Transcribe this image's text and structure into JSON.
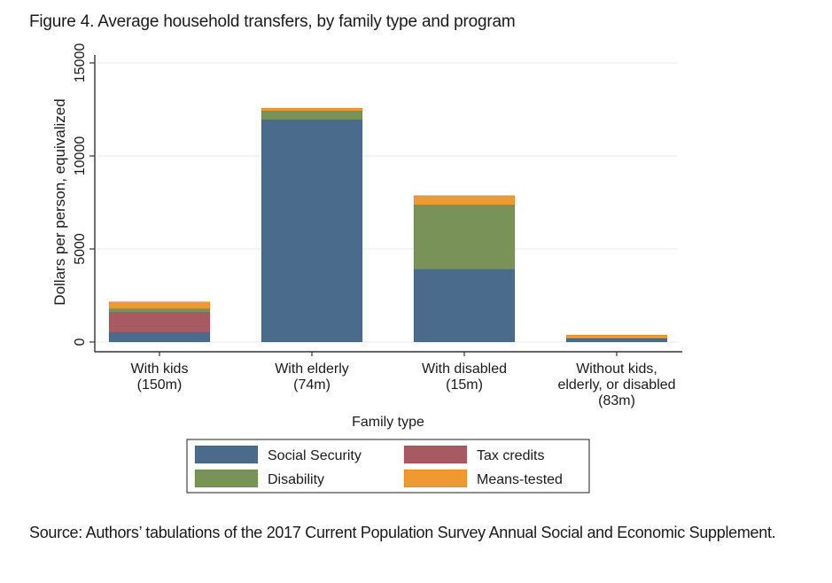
{
  "figure_title": "Figure 4. Average household transfers, by family type and program",
  "source_note": "Source: Authors’ tabulations of the 2017 Current Population Survey Annual Social and Economic Supplement.",
  "chart_data": {
    "type": "bar",
    "stacked": true,
    "title": "Figure 4. Average household transfers, by family type and program",
    "xlabel": "Family type",
    "ylabel": "Dollars per person, equivalized",
    "ylim": [
      0,
      15000
    ],
    "yticks": [
      0,
      5000,
      10000,
      15000
    ],
    "grid": true,
    "legend_position": "bottom",
    "categories": [
      [
        "With kids",
        "(150m)"
      ],
      [
        "With elderly",
        "(74m)"
      ],
      [
        "With disabled",
        "(15m)"
      ],
      [
        "Without kids,",
        "elderly, or disabled",
        "(83m)"
      ]
    ],
    "series": [
      {
        "name": "Social Security",
        "color": "#4a6b8c",
        "values": [
          510,
          11930,
          3900,
          190
        ]
      },
      {
        "name": "Tax credits",
        "color": "#a85a62",
        "values": [
          1080,
          0,
          0,
          0
        ]
      },
      {
        "name": "Disability",
        "color": "#799258",
        "values": [
          190,
          480,
          3460,
          0
        ]
      },
      {
        "name": "Means-tested",
        "color": "#ee9a30",
        "values": [
          380,
          160,
          510,
          190
        ]
      }
    ],
    "legend": [
      {
        "name": "Social Security",
        "color": "#4a6b8c"
      },
      {
        "name": "Tax credits",
        "color": "#a85a62"
      },
      {
        "name": "Disability",
        "color": "#799258"
      },
      {
        "name": "Means-tested",
        "color": "#ee9a30"
      }
    ]
  }
}
